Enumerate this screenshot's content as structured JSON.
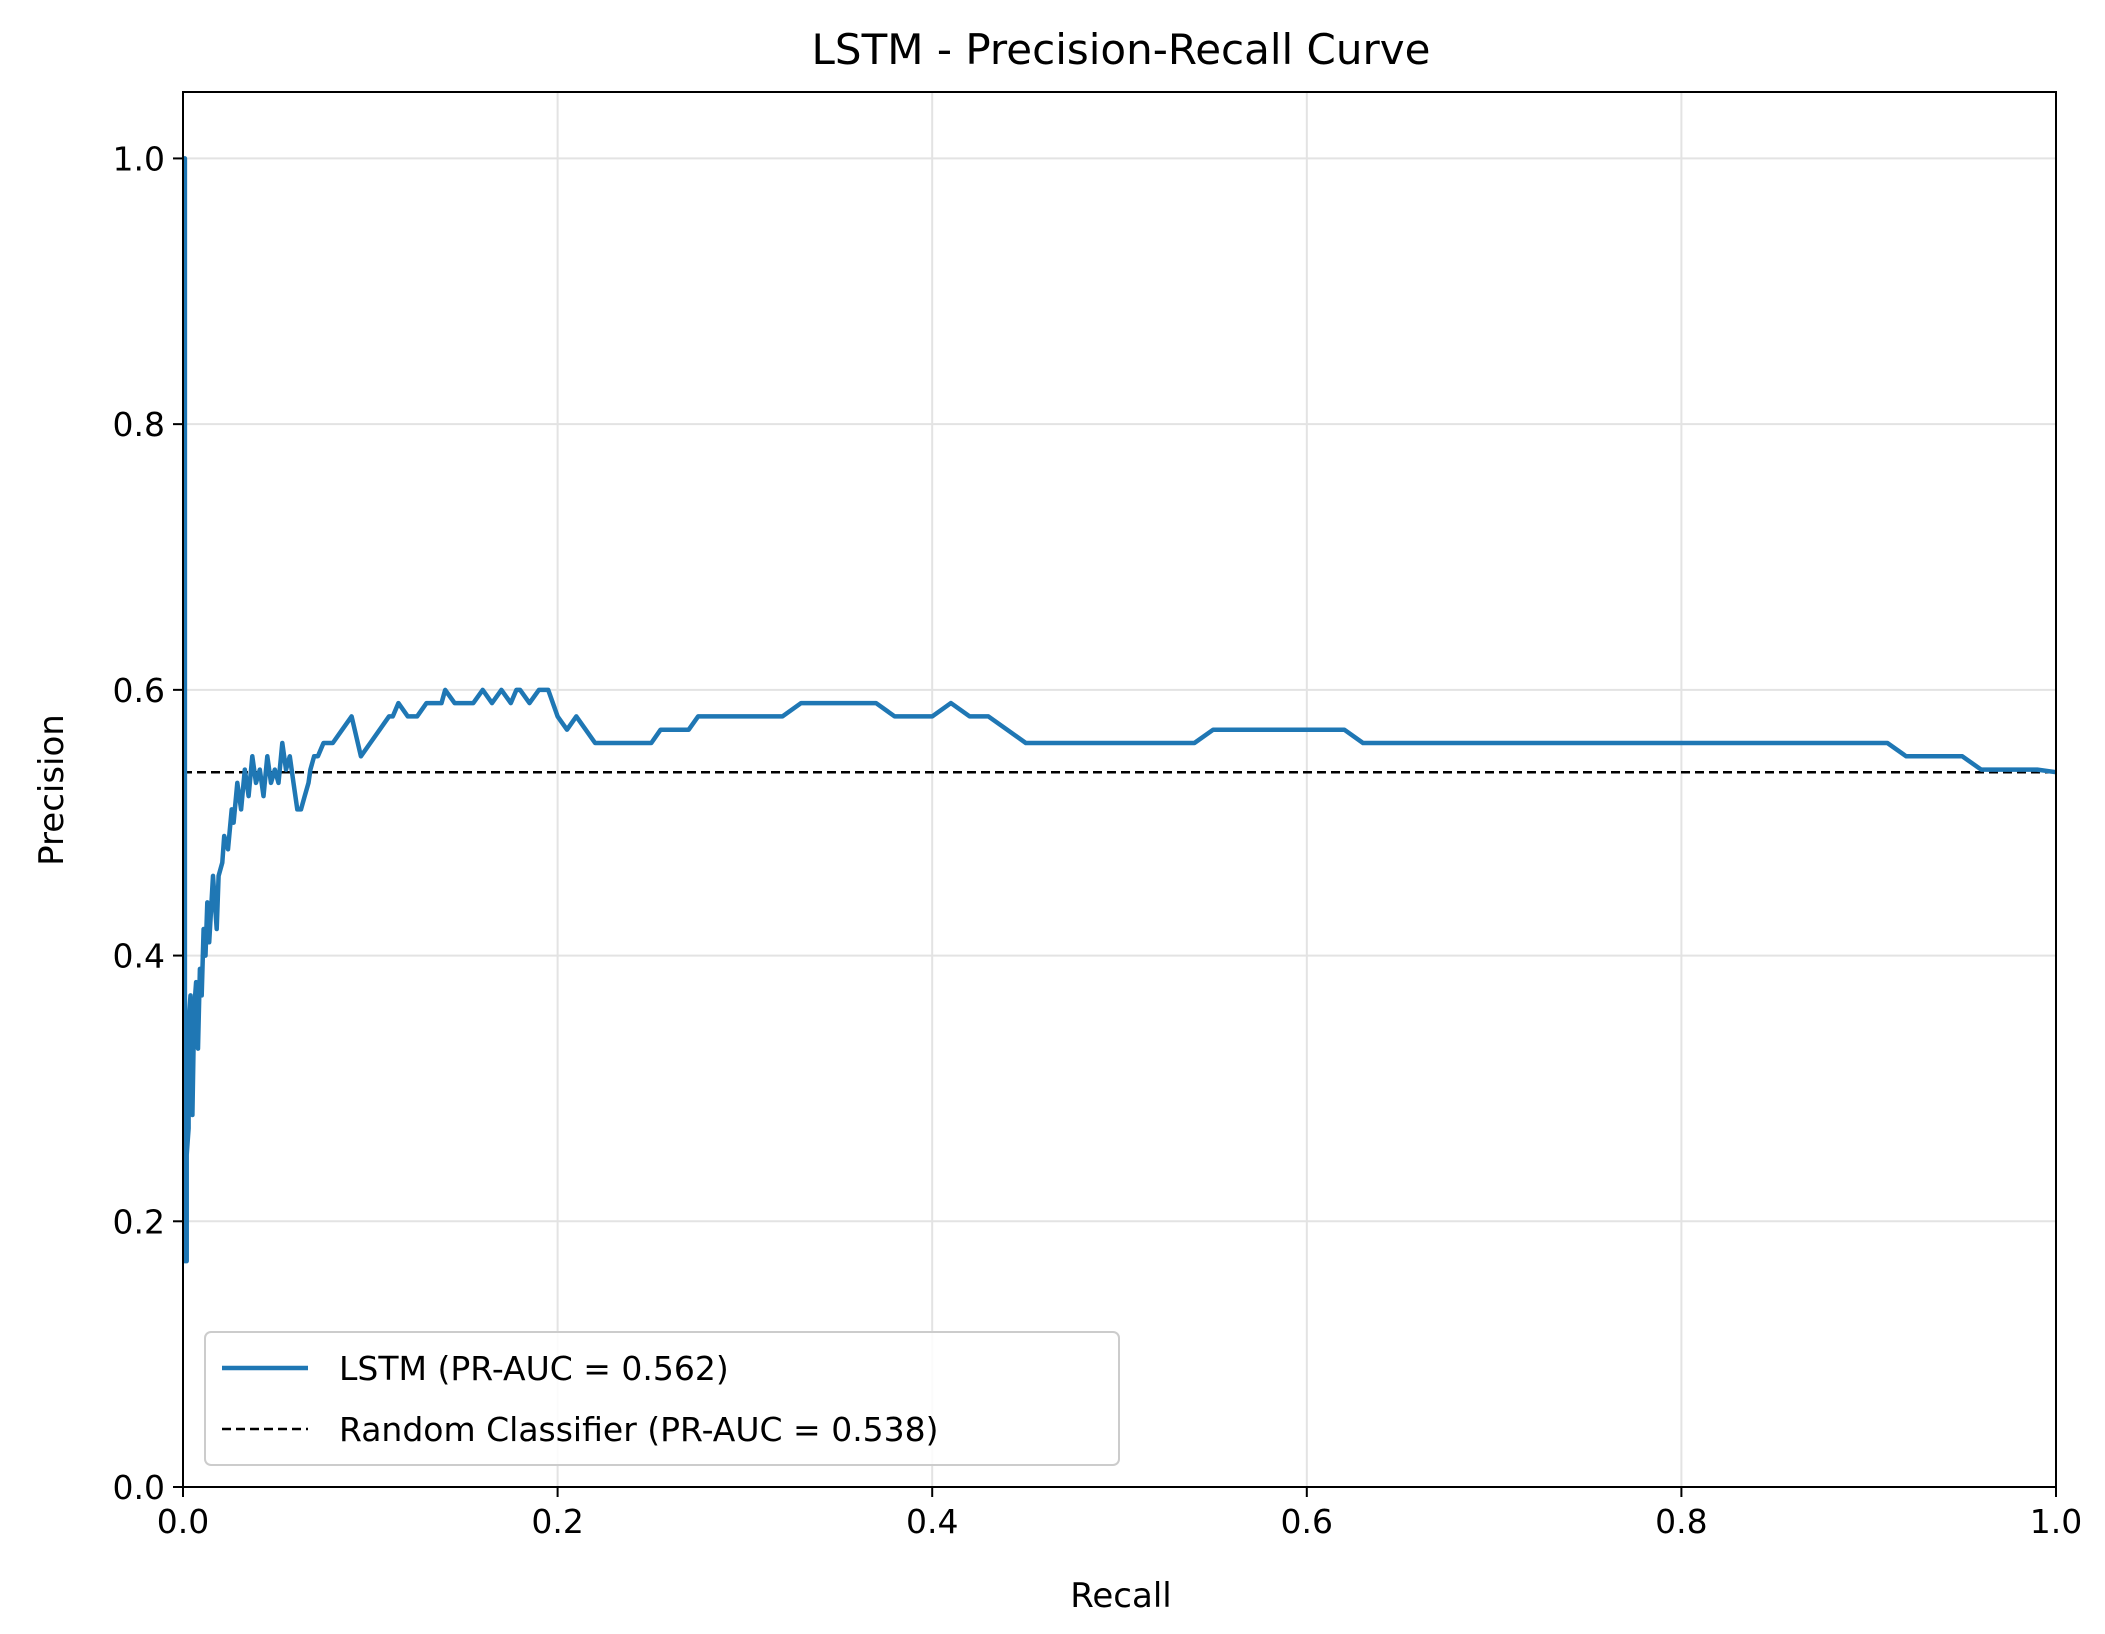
{
  "chart_data": {
    "type": "line",
    "title": "LSTM - Precision-Recall Curve",
    "xlabel": "Recall",
    "ylabel": "Precision",
    "xlim": [
      0.0,
      1.0
    ],
    "ylim": [
      0.0,
      1.05
    ],
    "xticks": [
      0.0,
      0.2,
      0.4,
      0.6,
      0.8,
      1.0
    ],
    "xtick_labels": [
      "0.0",
      "0.2",
      "0.4",
      "0.6",
      "0.8",
      "1.0"
    ],
    "yticks": [
      0.0,
      0.2,
      0.4,
      0.6,
      0.8,
      1.0
    ],
    "ytick_labels": [
      "0.0",
      "0.2",
      "0.4",
      "0.6",
      "0.8",
      "1.0"
    ],
    "grid": true,
    "legend_position": "lower-left",
    "series": [
      {
        "name": "LSTM (PR-AUC = 0.562)",
        "style": "solid",
        "color": "#1f77b4",
        "x": [
          0.0,
          0.001,
          0.001,
          0.002,
          0.002,
          0.003,
          0.003,
          0.004,
          0.005,
          0.006,
          0.007,
          0.008,
          0.009,
          0.01,
          0.011,
          0.012,
          0.013,
          0.014,
          0.016,
          0.018,
          0.019,
          0.021,
          0.022,
          0.024,
          0.026,
          0.027,
          0.029,
          0.031,
          0.033,
          0.035,
          0.037,
          0.039,
          0.041,
          0.043,
          0.045,
          0.047,
          0.049,
          0.051,
          0.053,
          0.055,
          0.057,
          0.059,
          0.061,
          0.063,
          0.065,
          0.067,
          0.068,
          0.07,
          0.072,
          0.075,
          0.08,
          0.085,
          0.09,
          0.095,
          0.1,
          0.105,
          0.11,
          0.112,
          0.115,
          0.12,
          0.125,
          0.13,
          0.135,
          0.138,
          0.14,
          0.145,
          0.15,
          0.155,
          0.16,
          0.165,
          0.17,
          0.175,
          0.178,
          0.18,
          0.185,
          0.19,
          0.195,
          0.2,
          0.205,
          0.21,
          0.215,
          0.22,
          0.225,
          0.23,
          0.235,
          0.24,
          0.245,
          0.25,
          0.255,
          0.26,
          0.265,
          0.27,
          0.275,
          0.28,
          0.29,
          0.3,
          0.31,
          0.32,
          0.33,
          0.34,
          0.35,
          0.36,
          0.37,
          0.38,
          0.39,
          0.4,
          0.41,
          0.42,
          0.43,
          0.44,
          0.45,
          0.46,
          0.47,
          0.475,
          0.48,
          0.485,
          0.49,
          0.5,
          0.51,
          0.52,
          0.53,
          0.54,
          0.55,
          0.56,
          0.57,
          0.58,
          0.59,
          0.6,
          0.61,
          0.62,
          0.63,
          0.64,
          0.65,
          0.66,
          0.67,
          0.68,
          0.69,
          0.7,
          0.71,
          0.72,
          0.73,
          0.74,
          0.75,
          0.76,
          0.77,
          0.78,
          0.79,
          0.8,
          0.81,
          0.82,
          0.83,
          0.84,
          0.85,
          0.86,
          0.87,
          0.88,
          0.89,
          0.9,
          0.91,
          0.92,
          0.93,
          0.94,
          0.95,
          0.96,
          0.97,
          0.98,
          0.99,
          1.0
        ],
        "y": [
          1.0,
          1.0,
          0.17,
          0.17,
          0.25,
          0.27,
          0.35,
          0.37,
          0.28,
          0.36,
          0.38,
          0.33,
          0.39,
          0.37,
          0.42,
          0.4,
          0.44,
          0.41,
          0.46,
          0.42,
          0.46,
          0.47,
          0.49,
          0.48,
          0.51,
          0.5,
          0.53,
          0.51,
          0.54,
          0.52,
          0.55,
          0.53,
          0.54,
          0.52,
          0.55,
          0.53,
          0.54,
          0.53,
          0.56,
          0.54,
          0.55,
          0.53,
          0.51,
          0.51,
          0.52,
          0.53,
          0.54,
          0.55,
          0.55,
          0.56,
          0.56,
          0.57,
          0.58,
          0.55,
          0.56,
          0.57,
          0.58,
          0.58,
          0.59,
          0.58,
          0.58,
          0.59,
          0.59,
          0.59,
          0.6,
          0.59,
          0.59,
          0.59,
          0.6,
          0.59,
          0.6,
          0.59,
          0.6,
          0.6,
          0.59,
          0.6,
          0.6,
          0.58,
          0.57,
          0.58,
          0.57,
          0.56,
          0.56,
          0.56,
          0.56,
          0.56,
          0.56,
          0.56,
          0.57,
          0.57,
          0.57,
          0.57,
          0.58,
          0.58,
          0.58,
          0.58,
          0.58,
          0.58,
          0.59,
          0.59,
          0.59,
          0.59,
          0.59,
          0.58,
          0.58,
          0.58,
          0.59,
          0.58,
          0.58,
          0.57,
          0.56,
          0.56,
          0.56,
          0.56,
          0.56,
          0.56,
          0.56,
          0.56,
          0.56,
          0.56,
          0.56,
          0.56,
          0.57,
          0.57,
          0.57,
          0.57,
          0.57,
          0.57,
          0.57,
          0.57,
          0.56,
          0.56,
          0.56,
          0.56,
          0.56,
          0.56,
          0.56,
          0.56,
          0.56,
          0.56,
          0.56,
          0.56,
          0.56,
          0.56,
          0.56,
          0.56,
          0.56,
          0.56,
          0.56,
          0.56,
          0.56,
          0.56,
          0.56,
          0.56,
          0.56,
          0.56,
          0.56,
          0.56,
          0.56,
          0.55,
          0.55,
          0.55,
          0.55,
          0.54,
          0.54,
          0.54,
          0.54,
          0.538
        ]
      },
      {
        "name": "Random Classifier (PR-AUC = 0.538)",
        "style": "dashed",
        "color": "#000000",
        "x": [
          0.0,
          1.0
        ],
        "y": [
          0.538,
          0.538
        ]
      }
    ]
  }
}
